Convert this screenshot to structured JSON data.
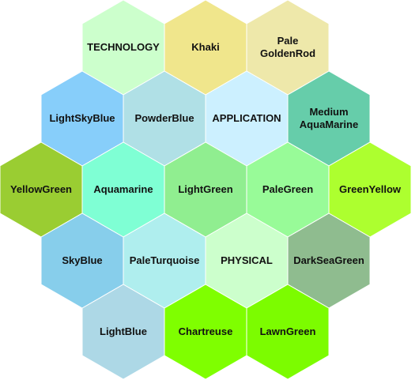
{
  "hexagons": [
    {
      "label": "TECHNOLOGY",
      "color": "#ccffcc"
    },
    {
      "label": "Khaki",
      "color": "#f0e68c"
    },
    {
      "label": "Pale GoldenRod",
      "color": "#eee8aa"
    },
    {
      "label": "LightSkyBlue",
      "color": "#87cefa"
    },
    {
      "label": "PowderBlue",
      "color": "#b0e0e6"
    },
    {
      "label": "APPLICATION",
      "color": "#ccf0ff"
    },
    {
      "label": "Medium AquaMarine",
      "color": "#66cdaa"
    },
    {
      "label": "YellowGreen",
      "color": "#9acd32"
    },
    {
      "label": "Aquamarine",
      "color": "#7fffd4"
    },
    {
      "label": "LightGreen",
      "color": "#90ee90"
    },
    {
      "label": "PaleGreen",
      "color": "#98fb98"
    },
    {
      "label": "GreenYellow",
      "color": "#adff2f"
    },
    {
      "label": "SkyBlue",
      "color": "#87ceeb"
    },
    {
      "label": "PaleTurquoise",
      "color": "#afeeee"
    },
    {
      "label": "PHYSICAL",
      "color": "#ccffcc"
    },
    {
      "label": "DarkSeaGreen",
      "color": "#8fbc8f"
    },
    {
      "label": "LightBlue",
      "color": "#add8e6"
    },
    {
      "label": "Chartreuse",
      "color": "#7fff00"
    },
    {
      "label": "LawnGreen",
      "color": "#7cfc00"
    }
  ]
}
